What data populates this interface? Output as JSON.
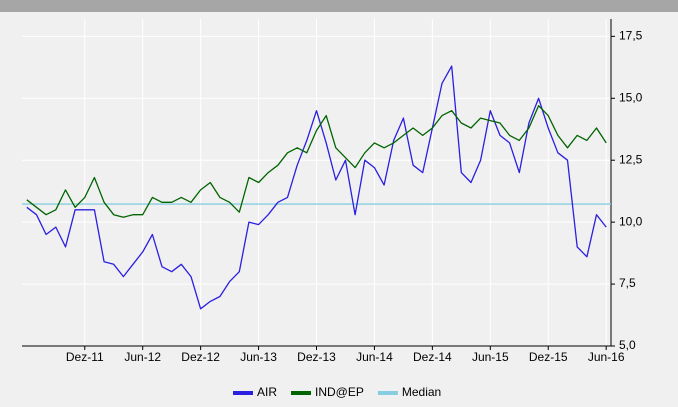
{
  "chart_data": {
    "type": "line",
    "categories": [
      null,
      null,
      null,
      null,
      null,
      null,
      "Dez-11",
      null,
      null,
      null,
      null,
      null,
      "Jun-12",
      null,
      null,
      null,
      null,
      null,
      "Dez-12",
      null,
      null,
      null,
      null,
      null,
      "Jun-13",
      null,
      null,
      null,
      null,
      null,
      "Dez-13",
      null,
      null,
      null,
      null,
      null,
      "Jun-14",
      null,
      null,
      null,
      null,
      null,
      "Dez-14",
      null,
      null,
      null,
      null,
      null,
      "Jun-15",
      null,
      null,
      null,
      null,
      null,
      "Dez-15",
      null,
      null,
      null,
      null,
      null,
      "Jun-16"
    ],
    "series": [
      {
        "name": "AIR",
        "color": "#2b1fe0",
        "values": [
          10.6,
          10.3,
          9.5,
          9.8,
          9.0,
          10.5,
          10.5,
          10.5,
          8.4,
          8.3,
          7.8,
          8.3,
          8.8,
          9.5,
          8.2,
          8.0,
          8.3,
          7.8,
          6.5,
          6.8,
          7.0,
          7.6,
          8.0,
          10.0,
          9.9,
          10.3,
          10.8,
          11.0,
          12.3,
          13.3,
          14.5,
          13.2,
          11.7,
          12.5,
          10.3,
          12.5,
          12.2,
          11.5,
          13.3,
          14.2,
          12.3,
          12.0,
          13.8,
          15.6,
          16.3,
          12.0,
          11.6,
          12.5,
          14.5,
          13.5,
          13.2,
          12.0,
          14.0,
          15.0,
          13.8,
          12.8,
          12.5,
          9.0,
          8.6,
          10.3,
          9.8
        ]
      },
      {
        "name": "IND@EP",
        "color": "#006400",
        "values": [
          10.9,
          10.6,
          10.3,
          10.5,
          11.3,
          10.6,
          11.0,
          11.8,
          10.8,
          10.3,
          10.2,
          10.3,
          10.3,
          11.0,
          10.8,
          10.8,
          11.0,
          10.8,
          11.3,
          11.6,
          11.0,
          10.8,
          10.4,
          11.8,
          11.6,
          12.0,
          12.3,
          12.8,
          13.0,
          12.8,
          13.7,
          14.3,
          13.0,
          12.6,
          12.2,
          12.8,
          13.2,
          13.0,
          13.2,
          13.5,
          13.8,
          13.5,
          13.8,
          14.3,
          14.5,
          14.0,
          13.8,
          14.2,
          14.1,
          14.0,
          13.5,
          13.3,
          13.8,
          14.7,
          14.3,
          13.5,
          13.0,
          13.5,
          13.3,
          13.8,
          13.2
        ]
      }
    ],
    "median": {
      "name": "Median",
      "color": "#87cee0",
      "value": 10.73
    },
    "ylim": [
      5,
      18.2
    ],
    "yticks": [
      {
        "value": 5,
        "label": "5,0"
      },
      {
        "value": 7.5,
        "label": "7,5"
      },
      {
        "value": 10,
        "label": "10,0"
      },
      {
        "value": 12.5,
        "label": "12,5"
      },
      {
        "value": 15,
        "label": "15,0"
      },
      {
        "value": 17.5,
        "label": "17,5"
      }
    ],
    "grid": true
  }
}
